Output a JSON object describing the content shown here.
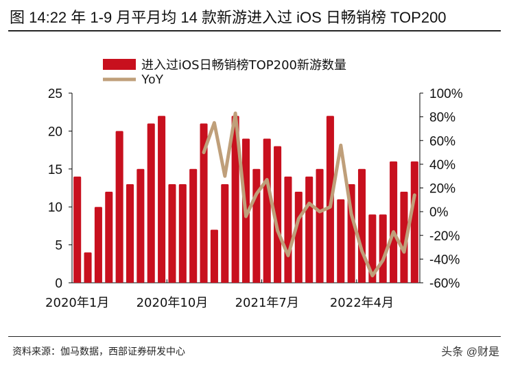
{
  "title": "图 14:22 年 1-9 月平月均 14 款新游进入过 iOS 日畅销榜 TOP200",
  "source": "资料来源：伽马数据，西部证券研发中心",
  "watermark": "头条 @财是",
  "chart_data": {
    "type": "bar+line",
    "x": [
      "2020-01",
      "2020-02",
      "2020-03",
      "2020-04",
      "2020-05",
      "2020-06",
      "2020-07",
      "2020-08",
      "2020-09",
      "2020-10",
      "2020-11",
      "2020-12",
      "2021-01",
      "2021-02",
      "2021-03",
      "2021-04",
      "2021-05",
      "2021-06",
      "2021-07",
      "2021-08",
      "2021-09",
      "2021-10",
      "2021-11",
      "2021-12",
      "2022-01",
      "2022-02",
      "2022-03",
      "2022-04",
      "2022-05",
      "2022-06",
      "2022-07",
      "2022-08",
      "2022-09"
    ],
    "x_tick_labels": [
      {
        "index": 0,
        "label": "2020年1月"
      },
      {
        "index": 9,
        "label": "2020年10月"
      },
      {
        "index": 18,
        "label": "2021年7月"
      },
      {
        "index": 27,
        "label": "2022年4月"
      }
    ],
    "series": [
      {
        "name": "进入过iOS日畅销榜TOP200新游数量",
        "type": "bar",
        "axis": "left",
        "color": "#c8101e",
        "values": [
          14,
          4,
          10,
          12,
          20,
          13,
          15,
          21,
          22,
          13,
          13,
          15,
          21,
          7,
          13,
          22,
          19,
          15,
          19,
          18,
          14,
          12,
          14,
          15,
          22,
          11,
          13,
          15,
          9,
          9,
          16,
          12,
          16
        ]
      },
      {
        "name": "YoY",
        "type": "line",
        "axis": "right",
        "color": "#bf9f7a",
        "values": [
          null,
          null,
          null,
          null,
          null,
          null,
          null,
          null,
          null,
          null,
          null,
          null,
          50,
          75,
          30,
          83,
          -4,
          15,
          27,
          -16,
          -37,
          -6,
          7,
          0,
          4,
          56,
          -2,
          -33,
          -54,
          -41,
          -17,
          -34,
          14
        ]
      }
    ],
    "left_axis": {
      "ylim": [
        0,
        25
      ],
      "ticks": [
        "0",
        "5",
        "10",
        "15",
        "20",
        "25"
      ]
    },
    "right_axis": {
      "ylim": [
        -60,
        100
      ],
      "ticks": [
        "-60%",
        "-40%",
        "-20%",
        "0%",
        "20%",
        "40%",
        "60%",
        "80%",
        "100%"
      ]
    },
    "legend_position": "top",
    "grid": false
  }
}
